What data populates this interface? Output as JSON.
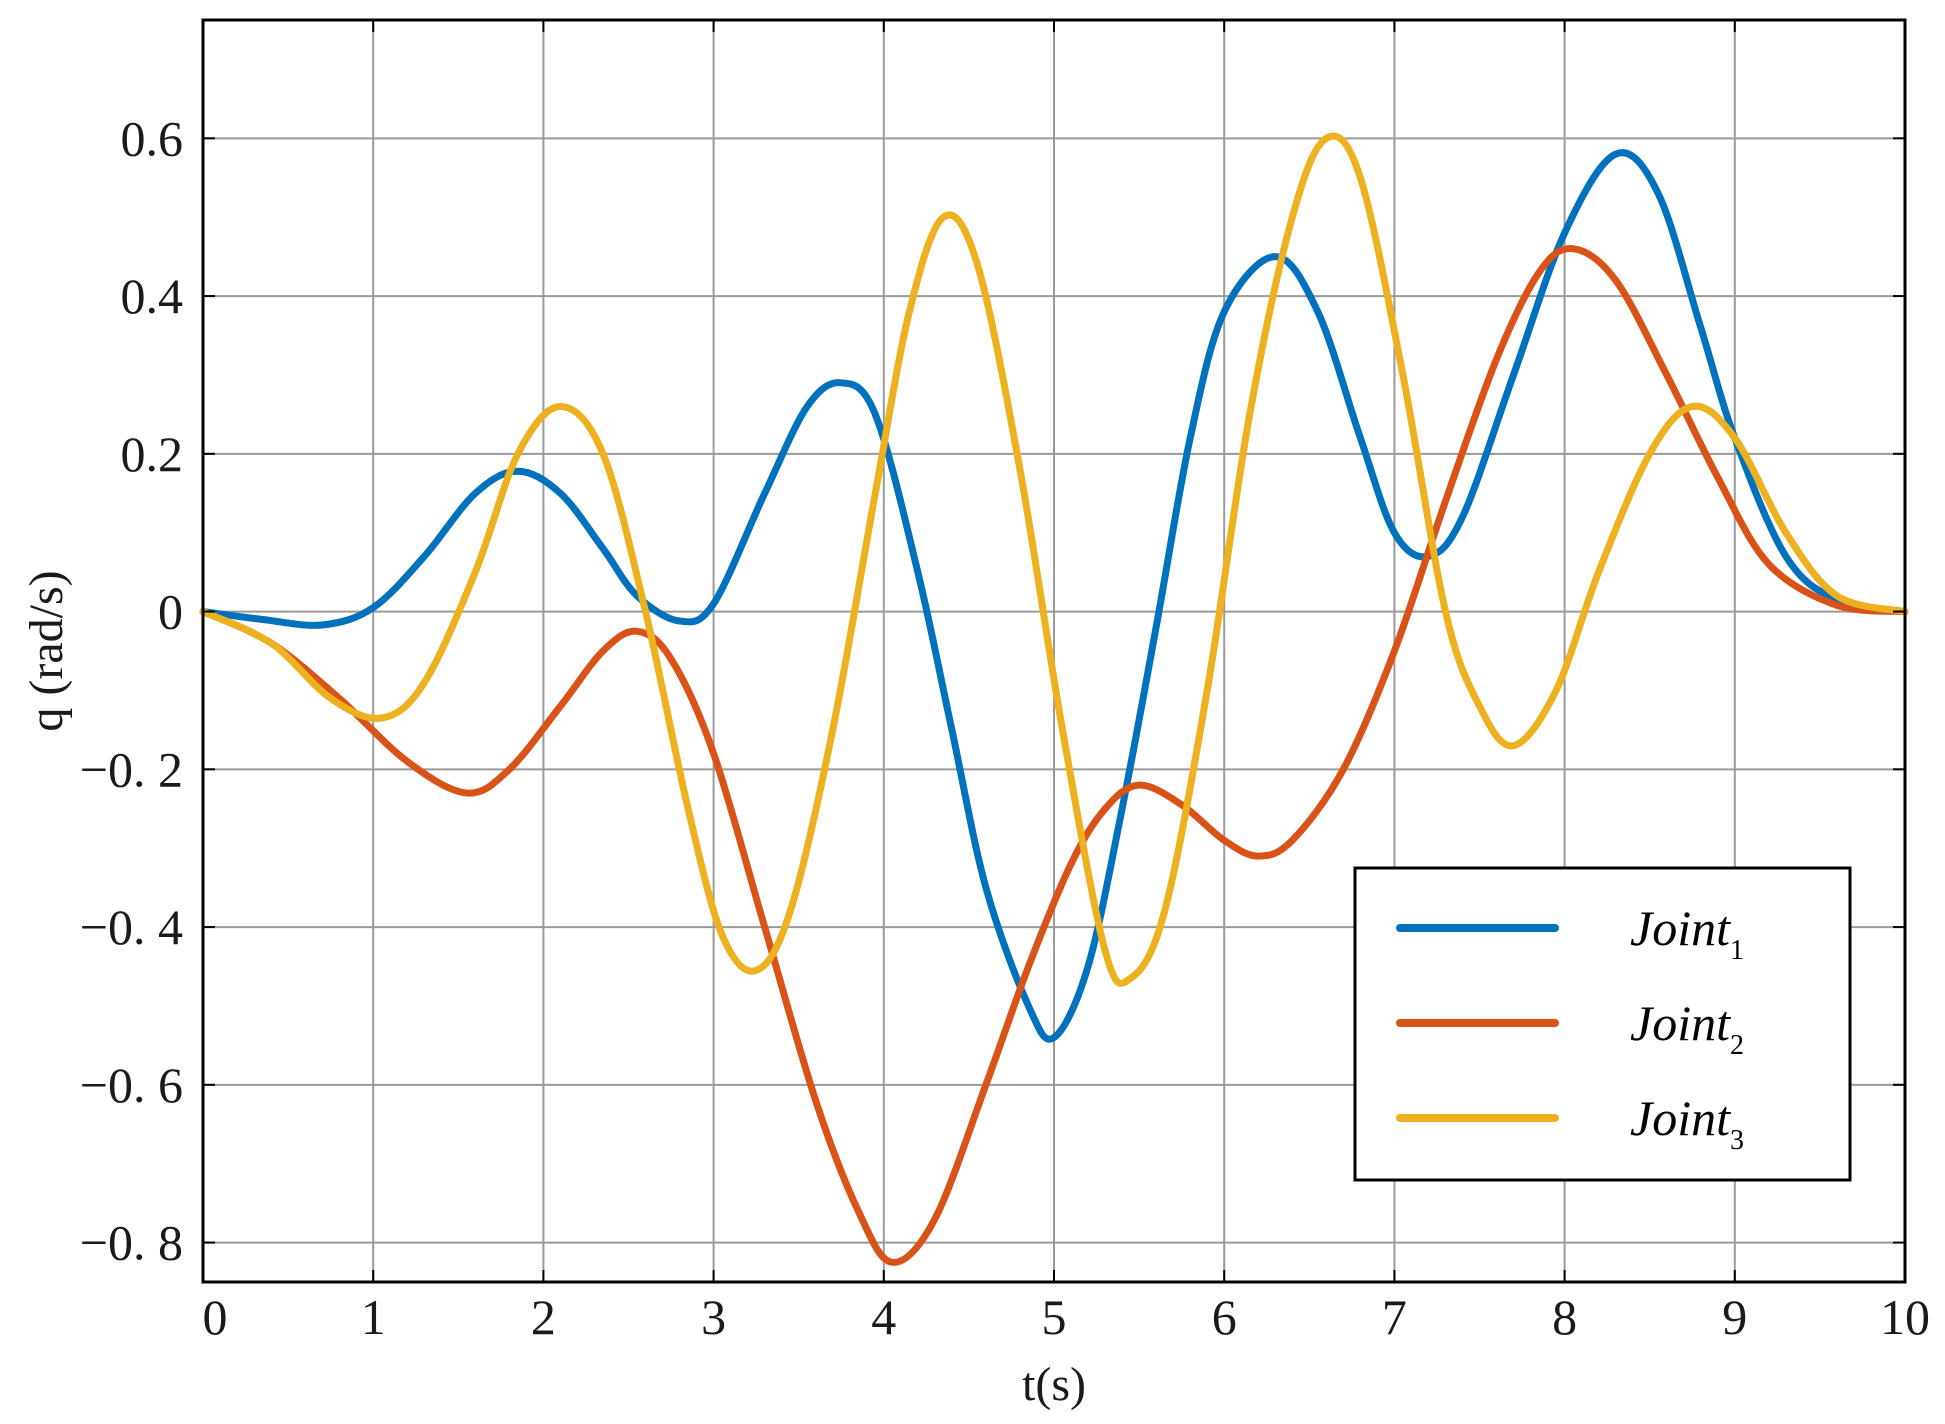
{
  "chart_data": {
    "type": "line",
    "title": "",
    "xlabel": "t(s)",
    "ylabel": "q (rad/s)",
    "xlim": [
      0,
      10
    ],
    "ylim": [
      -0.85,
      0.75
    ],
    "grid": true,
    "legend_position": "bottom-right",
    "x_ticks": [
      0,
      1,
      2,
      3,
      4,
      5,
      6,
      7,
      8,
      9,
      10
    ],
    "x_tick_labels": [
      "0",
      "1",
      "2",
      "3",
      "4",
      "5",
      "6",
      "7",
      "8",
      "9",
      "10"
    ],
    "y_ticks": [
      0.6,
      0.4,
      0.2,
      0,
      -0.2,
      -0.4,
      -0.6,
      -0.8
    ],
    "y_tick_labels": [
      "0.6",
      "0.4",
      "0.2",
      "0",
      "−0. 2",
      "−0. 4",
      "−0. 6",
      "−0. 8"
    ],
    "series": [
      {
        "name": "Joint",
        "subscript": "1",
        "color": "#0072BD",
        "points": [
          [
            0,
            0
          ],
          [
            0.35,
            -0.01
          ],
          [
            0.7,
            -0.017
          ],
          [
            1.0,
            0.005
          ],
          [
            1.3,
            0.07
          ],
          [
            1.6,
            0.15
          ],
          [
            1.85,
            0.178
          ],
          [
            2.1,
            0.15
          ],
          [
            2.35,
            0.08
          ],
          [
            2.55,
            0.02
          ],
          [
            2.8,
            -0.012
          ],
          [
            3.0,
            0.01
          ],
          [
            3.3,
            0.15
          ],
          [
            3.55,
            0.26
          ],
          [
            3.75,
            0.29
          ],
          [
            3.95,
            0.25
          ],
          [
            4.2,
            0.05
          ],
          [
            4.4,
            -0.15
          ],
          [
            4.6,
            -0.35
          ],
          [
            4.85,
            -0.5
          ],
          [
            5.0,
            -0.54
          ],
          [
            5.2,
            -0.45
          ],
          [
            5.4,
            -0.25
          ],
          [
            5.6,
            -0.02
          ],
          [
            5.8,
            0.22
          ],
          [
            6.0,
            0.38
          ],
          [
            6.3,
            0.45
          ],
          [
            6.55,
            0.38
          ],
          [
            6.8,
            0.22
          ],
          [
            7.0,
            0.1
          ],
          [
            7.2,
            0.07
          ],
          [
            7.4,
            0.12
          ],
          [
            7.7,
            0.3
          ],
          [
            8.0,
            0.48
          ],
          [
            8.3,
            0.58
          ],
          [
            8.55,
            0.53
          ],
          [
            8.8,
            0.36
          ],
          [
            9.0,
            0.22
          ],
          [
            9.3,
            0.07
          ],
          [
            9.6,
            0.015
          ],
          [
            10,
            0
          ]
        ]
      },
      {
        "name": "Joint",
        "subscript": "2",
        "color": "#D95319",
        "points": [
          [
            0,
            0
          ],
          [
            0.4,
            -0.04
          ],
          [
            0.8,
            -0.11
          ],
          [
            1.2,
            -0.19
          ],
          [
            1.55,
            -0.23
          ],
          [
            1.8,
            -0.2
          ],
          [
            2.1,
            -0.12
          ],
          [
            2.35,
            -0.05
          ],
          [
            2.55,
            -0.025
          ],
          [
            2.75,
            -0.06
          ],
          [
            3.0,
            -0.18
          ],
          [
            3.3,
            -0.4
          ],
          [
            3.6,
            -0.62
          ],
          [
            3.85,
            -0.76
          ],
          [
            4.05,
            -0.825
          ],
          [
            4.3,
            -0.77
          ],
          [
            4.6,
            -0.6
          ],
          [
            4.85,
            -0.45
          ],
          [
            5.1,
            -0.32
          ],
          [
            5.3,
            -0.25
          ],
          [
            5.5,
            -0.22
          ],
          [
            5.75,
            -0.245
          ],
          [
            6.0,
            -0.29
          ],
          [
            6.2,
            -0.31
          ],
          [
            6.4,
            -0.29
          ],
          [
            6.7,
            -0.2
          ],
          [
            7.0,
            -0.05
          ],
          [
            7.3,
            0.14
          ],
          [
            7.6,
            0.32
          ],
          [
            7.85,
            0.43
          ],
          [
            8.05,
            0.46
          ],
          [
            8.3,
            0.42
          ],
          [
            8.6,
            0.3
          ],
          [
            8.9,
            0.17
          ],
          [
            9.2,
            0.06
          ],
          [
            9.6,
            0.008
          ],
          [
            10,
            0
          ]
        ]
      },
      {
        "name": "Joint",
        "subscript": "3",
        "color": "#EDB120",
        "points": [
          [
            0,
            0
          ],
          [
            0.4,
            -0.04
          ],
          [
            0.75,
            -0.11
          ],
          [
            1.05,
            -0.135
          ],
          [
            1.3,
            -0.09
          ],
          [
            1.6,
            0.05
          ],
          [
            1.85,
            0.2
          ],
          [
            2.1,
            0.26
          ],
          [
            2.35,
            0.2
          ],
          [
            2.6,
            0.0
          ],
          [
            2.85,
            -0.25
          ],
          [
            3.05,
            -0.41
          ],
          [
            3.25,
            -0.455
          ],
          [
            3.45,
            -0.38
          ],
          [
            3.7,
            -0.15
          ],
          [
            3.95,
            0.15
          ],
          [
            4.15,
            0.38
          ],
          [
            4.35,
            0.5
          ],
          [
            4.55,
            0.44
          ],
          [
            4.8,
            0.18
          ],
          [
            5.05,
            -0.15
          ],
          [
            5.3,
            -0.43
          ],
          [
            5.45,
            -0.465
          ],
          [
            5.65,
            -0.38
          ],
          [
            5.9,
            -0.1
          ],
          [
            6.15,
            0.25
          ],
          [
            6.4,
            0.5
          ],
          [
            6.6,
            0.6
          ],
          [
            6.8,
            0.55
          ],
          [
            7.05,
            0.3
          ],
          [
            7.3,
            0.0
          ],
          [
            7.5,
            -0.12
          ],
          [
            7.7,
            -0.17
          ],
          [
            7.95,
            -0.1
          ],
          [
            8.2,
            0.05
          ],
          [
            8.5,
            0.2
          ],
          [
            8.75,
            0.26
          ],
          [
            9.0,
            0.22
          ],
          [
            9.3,
            0.1
          ],
          [
            9.6,
            0.02
          ],
          [
            10,
            0
          ]
        ]
      }
    ]
  }
}
